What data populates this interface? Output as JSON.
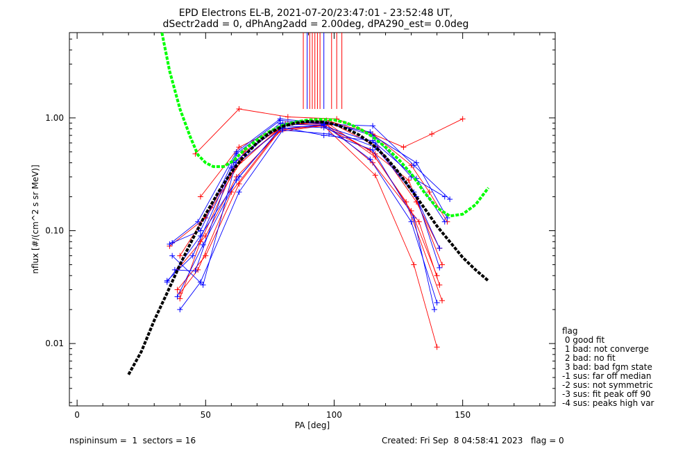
{
  "title_line1": "EPD Electrons EL-B, 2021-07-20/23:47:01 - 23:52:48 UT,",
  "title_line2": "dSectr2add = 0, dPhAng2add = 2.00deg, dPA290_est=    0.0deg",
  "legend": {
    "title": "flag",
    "items": [
      " 0 good fit",
      " 1 bad: not converge",
      " 2 bad: no fit",
      " 3 bad: bad fgm state",
      "-1 sus: far off median",
      "-2 sus: not symmetric",
      "-3 sus: fit peak off 90",
      "-4 sus: peaks high var"
    ]
  },
  "footer": {
    "left": "nspininsum =  1  sectors = 16",
    "right": "Created: Fri Sep  8 04:58:41 2023   flag = 0"
  },
  "colors": {
    "red": "#ff0000",
    "blue": "#0000ff",
    "green": "#00ff00",
    "black": "#000000"
  },
  "chart_data": {
    "type": "line",
    "title": "EPD Electrons EL-B, 2021-07-20/23:47:01 - 23:52:48 UT,",
    "subtitle": "dSectr2add = 0, dPhAng2add = 2.00deg, dPA290_est=    0.0deg",
    "xlabel": "PA [deg]",
    "ylabel": "nflux [#/(cm^2 s sr MeV)]",
    "xlim": [
      -3,
      186
    ],
    "ylim": [
      0.0028,
      5.7
    ],
    "yscale": "log",
    "xticks": [
      0,
      50,
      100,
      150
    ],
    "xtick_labels": [
      "0",
      "50",
      "100",
      "150"
    ],
    "yticks": [
      0.01,
      0.1,
      1.0
    ],
    "ytick_labels": [
      "0.01",
      "0.10",
      "1.00"
    ],
    "grid": false,
    "legend_position": "outside-right",
    "series": [
      {
        "color": "red",
        "points": [
          [
            46,
            0.48
          ],
          [
            63,
            1.2
          ],
          [
            82,
            1.02
          ],
          [
            101,
            0.98
          ],
          [
            127,
            0.55
          ],
          [
            138,
            0.72
          ],
          [
            150,
            0.98
          ]
        ]
      },
      {
        "color": "red",
        "points": [
          [
            48,
            0.2
          ],
          [
            63,
            0.55
          ],
          [
            80,
            0.85
          ],
          [
            97,
            0.95
          ],
          [
            115,
            0.72
          ],
          [
            130,
            0.38
          ],
          [
            137,
            0.22
          ],
          [
            144,
            0.12
          ]
        ]
      },
      {
        "color": "red",
        "points": [
          [
            40,
            0.06
          ],
          [
            52,
            0.16
          ],
          [
            65,
            0.5
          ],
          [
            82,
            0.9
          ],
          [
            99,
            0.9
          ],
          [
            117,
            0.55
          ],
          [
            132,
            0.18
          ],
          [
            141,
            0.07
          ]
        ]
      },
      {
        "color": "red",
        "points": [
          [
            36,
            0.073
          ],
          [
            50,
            0.13
          ],
          [
            64,
            0.42
          ],
          [
            81,
            0.88
          ],
          [
            98,
            0.88
          ],
          [
            116,
            0.45
          ],
          [
            130,
            0.15
          ],
          [
            140,
            0.04
          ]
        ]
      },
      {
        "color": "red",
        "points": [
          [
            39,
            0.045
          ],
          [
            50,
            0.09
          ],
          [
            62,
            0.3
          ],
          [
            80,
            0.8
          ],
          [
            96,
            0.85
          ],
          [
            116,
            0.31
          ],
          [
            131,
            0.05
          ],
          [
            140,
            0.0093
          ]
        ]
      },
      {
        "color": "red",
        "points": [
          [
            39,
            0.03
          ],
          [
            50,
            0.06
          ],
          [
            63,
            0.26
          ],
          [
            79,
            0.78
          ],
          [
            97,
            0.87
          ],
          [
            115,
            0.4
          ],
          [
            133,
            0.12
          ],
          [
            141,
            0.033
          ]
        ]
      },
      {
        "color": "red",
        "points": [
          [
            40,
            0.028
          ],
          [
            47,
            0.045
          ],
          [
            60,
            0.22
          ],
          [
            78,
            0.75
          ],
          [
            95,
            0.85
          ],
          [
            114,
            0.52
          ],
          [
            128,
            0.18
          ],
          [
            142,
            0.024
          ]
        ]
      },
      {
        "color": "red",
        "points": [
          [
            40,
            0.025
          ],
          [
            48,
            0.08
          ],
          [
            61,
            0.35
          ],
          [
            80,
            0.86
          ],
          [
            95,
            0.92
          ],
          [
            116,
            0.48
          ],
          [
            129,
            0.28
          ],
          [
            142,
            0.05
          ]
        ]
      },
      {
        "color": "blue",
        "points": [
          [
            36,
            0.076
          ],
          [
            47,
            0.12
          ],
          [
            62,
            0.5
          ],
          [
            79,
            0.98
          ],
          [
            96,
            0.9
          ],
          [
            114,
            0.75
          ],
          [
            130,
            0.3
          ],
          [
            143,
            0.2
          ]
        ]
      },
      {
        "color": "blue",
        "points": [
          [
            37,
            0.078
          ],
          [
            48,
            0.1
          ],
          [
            62,
            0.48
          ],
          [
            79,
            0.95
          ],
          [
            96,
            0.88
          ],
          [
            115,
            0.85
          ],
          [
            131,
            0.38
          ],
          [
            145,
            0.19
          ]
        ]
      },
      {
        "color": "blue",
        "points": [
          [
            35,
            0.036
          ],
          [
            45,
            0.06
          ],
          [
            61,
            0.4
          ],
          [
            79,
            0.9
          ],
          [
            97,
            0.92
          ],
          [
            115,
            0.7
          ],
          [
            132,
            0.4
          ],
          [
            144,
            0.13
          ]
        ]
      },
      {
        "color": "blue",
        "points": [
          [
            35,
            0.035
          ],
          [
            48,
            0.09
          ],
          [
            63,
            0.3
          ],
          [
            80,
            0.85
          ],
          [
            96,
            0.82
          ],
          [
            116,
            0.55
          ],
          [
            132,
            0.2
          ],
          [
            141,
            0.047
          ]
        ]
      },
      {
        "color": "blue",
        "points": [
          [
            39,
            0.026
          ],
          [
            49,
            0.075
          ],
          [
            62,
            0.28
          ],
          [
            79,
            0.8
          ],
          [
            96,
            0.87
          ],
          [
            114,
            0.43
          ],
          [
            130,
            0.12
          ],
          [
            140,
            0.023
          ]
        ]
      },
      {
        "color": "blue",
        "points": [
          [
            40,
            0.02
          ],
          [
            48,
            0.035
          ],
          [
            63,
            0.22
          ],
          [
            80,
            0.78
          ],
          [
            98,
            0.72
          ],
          [
            115,
            0.52
          ],
          [
            131,
            0.13
          ],
          [
            139,
            0.02
          ]
        ]
      },
      {
        "color": "blue",
        "points": [
          [
            38,
            0.045
          ],
          [
            46,
            0.044
          ],
          [
            60,
            0.36
          ],
          [
            80,
            0.82
          ],
          [
            96,
            0.7
          ],
          [
            115,
            0.63
          ],
          [
            131,
            0.22
          ],
          [
            141,
            0.07
          ]
        ]
      },
      {
        "color": "blue",
        "points": [
          [
            37,
            0.06
          ],
          [
            49,
            0.033
          ],
          [
            62,
            0.42
          ],
          [
            80,
            0.88
          ],
          [
            95,
            0.86
          ],
          [
            116,
            0.6
          ],
          [
            132,
            0.29
          ],
          [
            143,
            0.12
          ]
        ]
      }
    ],
    "curves": [
      {
        "name": "green",
        "color": "green",
        "points": [
          [
            33,
            5.8
          ],
          [
            36,
            2.6
          ],
          [
            40,
            1.2
          ],
          [
            44,
            0.68
          ],
          [
            47,
            0.47
          ],
          [
            50,
            0.4
          ],
          [
            53,
            0.37
          ],
          [
            57,
            0.37
          ],
          [
            61,
            0.42
          ],
          [
            65,
            0.52
          ],
          [
            70,
            0.64
          ],
          [
            75,
            0.76
          ],
          [
            80,
            0.86
          ],
          [
            85,
            0.92
          ],
          [
            90,
            0.96
          ],
          [
            95,
            0.97
          ],
          [
            100,
            0.96
          ],
          [
            105,
            0.9
          ],
          [
            110,
            0.8
          ],
          [
            115,
            0.68
          ],
          [
            120,
            0.55
          ],
          [
            125,
            0.43
          ],
          [
            130,
            0.32
          ],
          [
            135,
            0.22
          ],
          [
            140,
            0.16
          ],
          [
            145,
            0.135
          ],
          [
            150,
            0.14
          ],
          [
            155,
            0.17
          ],
          [
            160,
            0.24
          ]
        ]
      },
      {
        "name": "black",
        "color": "black",
        "points": [
          [
            20,
            0.0053
          ],
          [
            25,
            0.0085
          ],
          [
            30,
            0.016
          ],
          [
            35,
            0.028
          ],
          [
            40,
            0.05
          ],
          [
            45,
            0.085
          ],
          [
            50,
            0.14
          ],
          [
            55,
            0.22
          ],
          [
            60,
            0.33
          ],
          [
            65,
            0.46
          ],
          [
            70,
            0.6
          ],
          [
            75,
            0.74
          ],
          [
            80,
            0.84
          ],
          [
            85,
            0.9
          ],
          [
            90,
            0.93
          ],
          [
            95,
            0.92
          ],
          [
            100,
            0.88
          ],
          [
            105,
            0.8
          ],
          [
            110,
            0.7
          ],
          [
            115,
            0.58
          ],
          [
            120,
            0.45
          ],
          [
            125,
            0.33
          ],
          [
            130,
            0.23
          ],
          [
            135,
            0.16
          ],
          [
            140,
            0.11
          ],
          [
            145,
            0.08
          ],
          [
            150,
            0.058
          ],
          [
            155,
            0.045
          ],
          [
            160,
            0.036
          ]
        ]
      }
    ],
    "vlines": [
      {
        "x": 88,
        "color": "red"
      },
      {
        "x": 89.5,
        "color": "blue"
      },
      {
        "x": 90.5,
        "color": "red"
      },
      {
        "x": 91.5,
        "color": "red"
      },
      {
        "x": 92.5,
        "color": "red"
      },
      {
        "x": 93.5,
        "color": "red"
      },
      {
        "x": 94.5,
        "color": "red"
      },
      {
        "x": 96,
        "color": "blue"
      },
      {
        "x": 99,
        "color": "red"
      },
      {
        "x": 101,
        "color": "red"
      },
      {
        "x": 103,
        "color": "red"
      }
    ],
    "vline_range": [
      1.2,
      5.7
    ]
  }
}
